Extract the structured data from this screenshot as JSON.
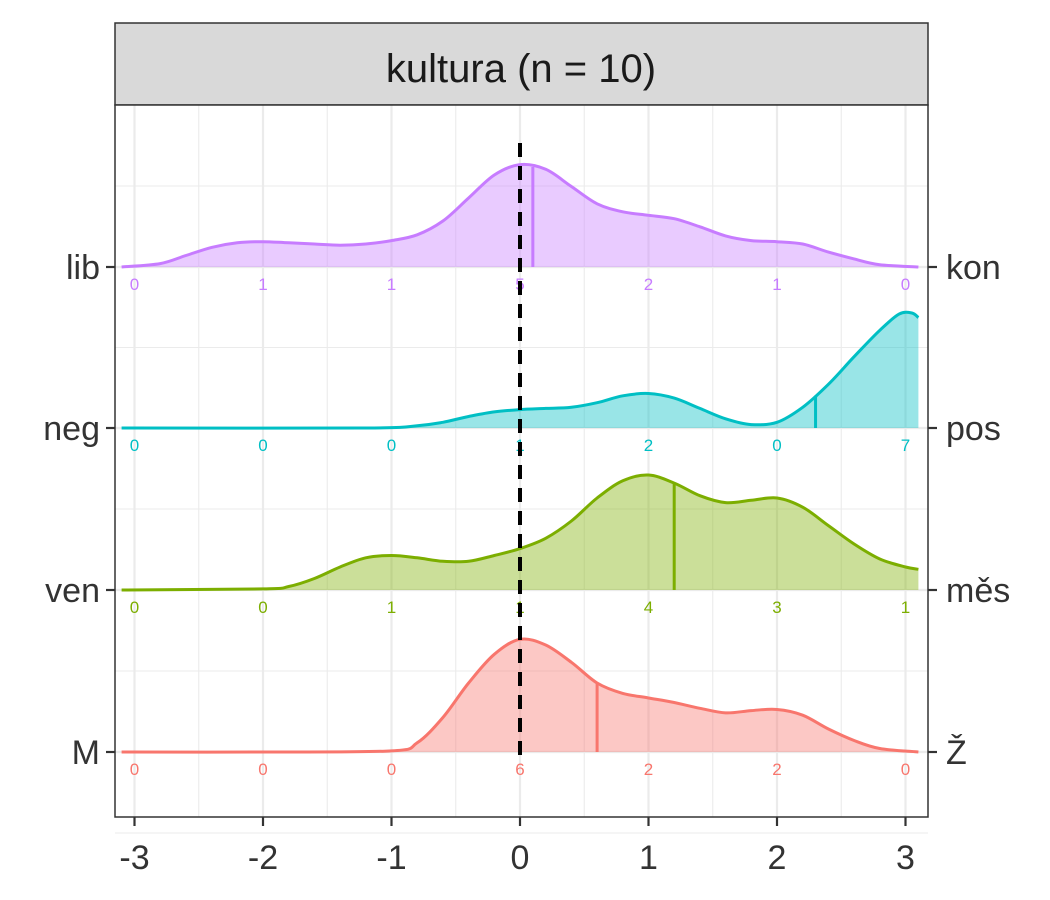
{
  "chart_data": {
    "type": "ridgeline",
    "title": "kultura (n = 10)",
    "xlim": [
      -3,
      3
    ],
    "x_ticks": [
      "-3",
      "-2",
      "-1",
      "0",
      "1",
      "2",
      "3"
    ],
    "reference_line_x": 0,
    "grid": true,
    "series": [
      {
        "left_label": "M",
        "right_label": "Ž",
        "color": "#F8766D",
        "counts": [
          {
            "x": -3,
            "label": "0"
          },
          {
            "x": -2,
            "label": "0"
          },
          {
            "x": -1,
            "label": "0"
          },
          {
            "x": 0,
            "label": "6"
          },
          {
            "x": 1,
            "label": "2"
          },
          {
            "x": 2,
            "label": "2"
          },
          {
            "x": 3,
            "label": "0"
          }
        ],
        "mean": 0.6,
        "density": [
          [
            -3.1,
            0
          ],
          [
            -2.0,
            0
          ],
          [
            -1.0,
            0.01
          ],
          [
            -0.8,
            0.08
          ],
          [
            -0.6,
            0.3
          ],
          [
            -0.4,
            0.6
          ],
          [
            -0.2,
            0.85
          ],
          [
            0.0,
            0.98
          ],
          [
            0.2,
            0.93
          ],
          [
            0.4,
            0.78
          ],
          [
            0.6,
            0.6
          ],
          [
            0.8,
            0.51
          ],
          [
            1.0,
            0.47
          ],
          [
            1.2,
            0.43
          ],
          [
            1.4,
            0.38
          ],
          [
            1.6,
            0.34
          ],
          [
            1.8,
            0.36
          ],
          [
            2.0,
            0.37
          ],
          [
            2.2,
            0.32
          ],
          [
            2.4,
            0.2
          ],
          [
            2.6,
            0.1
          ],
          [
            2.8,
            0.03
          ],
          [
            3.1,
            0
          ]
        ]
      },
      {
        "left_label": "ven",
        "right_label": "měs",
        "color": "#7CAE00",
        "counts": [
          {
            "x": -3,
            "label": "0"
          },
          {
            "x": -2,
            "label": "0"
          },
          {
            "x": -1,
            "label": "1"
          },
          {
            "x": 0,
            "label": "1"
          },
          {
            "x": 1,
            "label": "4"
          },
          {
            "x": 2,
            "label": "3"
          },
          {
            "x": 3,
            "label": "1"
          }
        ],
        "mean": 1.2,
        "density": [
          [
            -3.1,
            0
          ],
          [
            -2.0,
            0.01
          ],
          [
            -1.8,
            0.03
          ],
          [
            -1.6,
            0.1
          ],
          [
            -1.4,
            0.2
          ],
          [
            -1.2,
            0.28
          ],
          [
            -1.0,
            0.3
          ],
          [
            -0.8,
            0.28
          ],
          [
            -0.6,
            0.25
          ],
          [
            -0.4,
            0.25
          ],
          [
            -0.2,
            0.3
          ],
          [
            0.0,
            0.36
          ],
          [
            0.2,
            0.45
          ],
          [
            0.4,
            0.6
          ],
          [
            0.6,
            0.8
          ],
          [
            0.8,
            0.95
          ],
          [
            1.0,
            1.0
          ],
          [
            1.2,
            0.93
          ],
          [
            1.4,
            0.82
          ],
          [
            1.6,
            0.76
          ],
          [
            1.8,
            0.78
          ],
          [
            2.0,
            0.8
          ],
          [
            2.2,
            0.72
          ],
          [
            2.4,
            0.56
          ],
          [
            2.6,
            0.4
          ],
          [
            2.8,
            0.27
          ],
          [
            3.0,
            0.2
          ],
          [
            3.1,
            0.18
          ]
        ]
      },
      {
        "left_label": "neg",
        "right_label": "pos",
        "color": "#00BFC4",
        "counts": [
          {
            "x": -3,
            "label": "0"
          },
          {
            "x": -2,
            "label": "0"
          },
          {
            "x": -1,
            "label": "0"
          },
          {
            "x": 0,
            "label": "1"
          },
          {
            "x": 1,
            "label": "2"
          },
          {
            "x": 2,
            "label": "0"
          },
          {
            "x": 3,
            "label": "7"
          }
        ],
        "mean": 2.3,
        "density": [
          [
            -3.1,
            0
          ],
          [
            -1.2,
            0
          ],
          [
            -0.8,
            0.02
          ],
          [
            -0.6,
            0.05
          ],
          [
            -0.4,
            0.1
          ],
          [
            -0.2,
            0.14
          ],
          [
            0.0,
            0.16
          ],
          [
            0.2,
            0.17
          ],
          [
            0.4,
            0.18
          ],
          [
            0.6,
            0.22
          ],
          [
            0.8,
            0.28
          ],
          [
            1.0,
            0.3
          ],
          [
            1.2,
            0.26
          ],
          [
            1.4,
            0.17
          ],
          [
            1.6,
            0.08
          ],
          [
            1.8,
            0.03
          ],
          [
            2.0,
            0.05
          ],
          [
            2.2,
            0.18
          ],
          [
            2.4,
            0.38
          ],
          [
            2.6,
            0.62
          ],
          [
            2.8,
            0.85
          ],
          [
            2.95,
            0.99
          ],
          [
            3.05,
            1.0
          ],
          [
            3.1,
            0.96
          ]
        ]
      },
      {
        "left_label": "lib",
        "right_label": "kon",
        "color": "#C77CFF",
        "counts": [
          {
            "x": -3,
            "label": "0"
          },
          {
            "x": -2,
            "label": "1"
          },
          {
            "x": -1,
            "label": "1"
          },
          {
            "x": 0,
            "label": "5"
          },
          {
            "x": 1,
            "label": "2"
          },
          {
            "x": 2,
            "label": "1"
          },
          {
            "x": 3,
            "label": "0"
          }
        ],
        "mean": 0.1,
        "density": [
          [
            -3.1,
            0
          ],
          [
            -2.8,
            0.03
          ],
          [
            -2.6,
            0.1
          ],
          [
            -2.4,
            0.17
          ],
          [
            -2.2,
            0.21
          ],
          [
            -2.0,
            0.22
          ],
          [
            -1.8,
            0.21
          ],
          [
            -1.6,
            0.2
          ],
          [
            -1.4,
            0.19
          ],
          [
            -1.2,
            0.2
          ],
          [
            -1.0,
            0.23
          ],
          [
            -0.8,
            0.28
          ],
          [
            -0.6,
            0.4
          ],
          [
            -0.4,
            0.6
          ],
          [
            -0.2,
            0.8
          ],
          [
            0.0,
            0.89
          ],
          [
            0.2,
            0.85
          ],
          [
            0.4,
            0.7
          ],
          [
            0.6,
            0.55
          ],
          [
            0.8,
            0.48
          ],
          [
            1.0,
            0.45
          ],
          [
            1.2,
            0.42
          ],
          [
            1.4,
            0.35
          ],
          [
            1.6,
            0.27
          ],
          [
            1.8,
            0.23
          ],
          [
            2.0,
            0.22
          ],
          [
            2.2,
            0.2
          ],
          [
            2.4,
            0.13
          ],
          [
            2.6,
            0.07
          ],
          [
            2.8,
            0.02
          ],
          [
            3.1,
            0
          ]
        ]
      }
    ]
  }
}
